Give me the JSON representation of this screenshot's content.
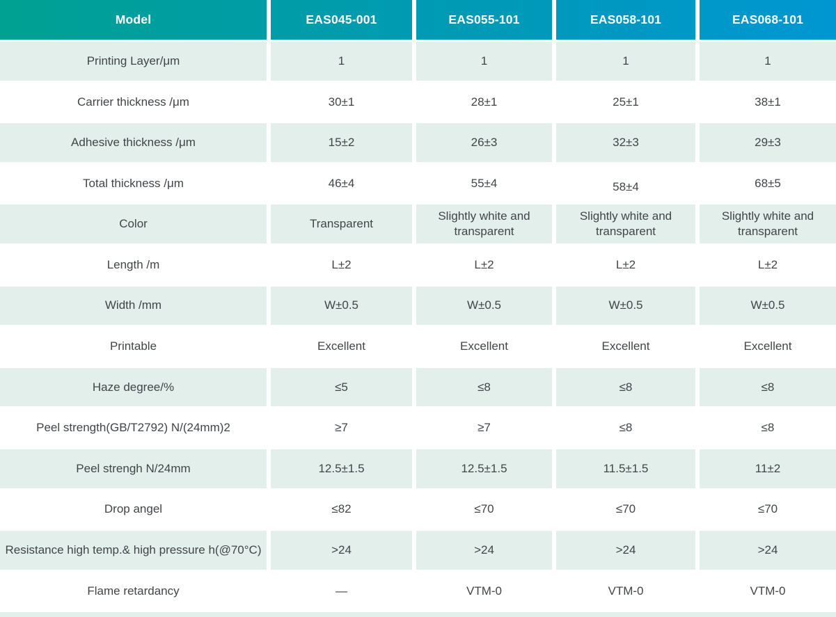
{
  "table": {
    "header": {
      "cells": [
        "Model",
        "EAS045-001",
        "EAS055-101",
        "EAS058-101",
        "EAS068-101"
      ],
      "gradient_from": "#00A092",
      "gradient_to": "#0096D2",
      "text_color": "#FFFFFF"
    },
    "rows": [
      {
        "label": "Printing Layer/μm",
        "values": [
          "1",
          "1",
          "1",
          "1"
        ],
        "shade": "light"
      },
      {
        "label": "Carrier thickness /μm",
        "values": [
          "30±1",
          "28±1",
          "25±1",
          "38±1"
        ],
        "shade": "white"
      },
      {
        "label": "Adhesive thickness /μm",
        "values": [
          "15±2",
          "26±3",
          "32±3",
          "29±3"
        ],
        "shade": "light"
      },
      {
        "label": "Total thickness /μm",
        "values": [
          "46±4",
          "55±4",
          "58±4",
          "68±5"
        ],
        "shade": "white",
        "value_offsets": [
          0,
          0,
          5,
          0
        ]
      },
      {
        "label": "Color",
        "values": [
          "Transparent",
          "Slightly white and transparent",
          "Slightly white and transparent",
          "Slightly white and transparent"
        ],
        "shade": "light"
      },
      {
        "label": "Length /m",
        "values": [
          "L±2",
          "L±2",
          "L±2",
          "L±2"
        ],
        "shade": "white"
      },
      {
        "label": "Width /mm",
        "values": [
          "W±0.5",
          "W±0.5",
          "W±0.5",
          "W±0.5"
        ],
        "shade": "light"
      },
      {
        "label": "Printable",
        "values": [
          "Excellent",
          "Excellent",
          "Excellent",
          "Excellent"
        ],
        "shade": "white"
      },
      {
        "label": "Haze degree/%",
        "values": [
          "≤5",
          "≤8",
          "≤8",
          "≤8"
        ],
        "shade": "light"
      },
      {
        "label": "Peel strength(GB/T2792)  N/(24mm)2",
        "values": [
          "≥7",
          "≥7",
          "≤8",
          "≤8"
        ],
        "shade": "white"
      },
      {
        "label": "Peel strengh N/24mm",
        "values": [
          "12.5±1.5",
          "12.5±1.5",
          "11.5±1.5",
          "11±2"
        ],
        "shade": "light"
      },
      {
        "label": "Drop angel",
        "values": [
          "≤82",
          "≤70",
          "≤70",
          "≤70"
        ],
        "shade": "white"
      },
      {
        "label": "Resistance high temp.& high pressure h(@70°C)",
        "values": [
          ">24",
          ">24",
          ">24",
          ">24"
        ],
        "shade": "light"
      },
      {
        "label": "Flame retardancy",
        "values": [
          "—",
          "VTM-0",
          "VTM-0",
          "VTM-0"
        ],
        "shade": "white"
      }
    ],
    "colors": {
      "row_light": "#E3EFEB",
      "row_white": "#FFFFFF",
      "text": "#414549"
    },
    "partial_bottom_row": {
      "shade": "light"
    }
  }
}
